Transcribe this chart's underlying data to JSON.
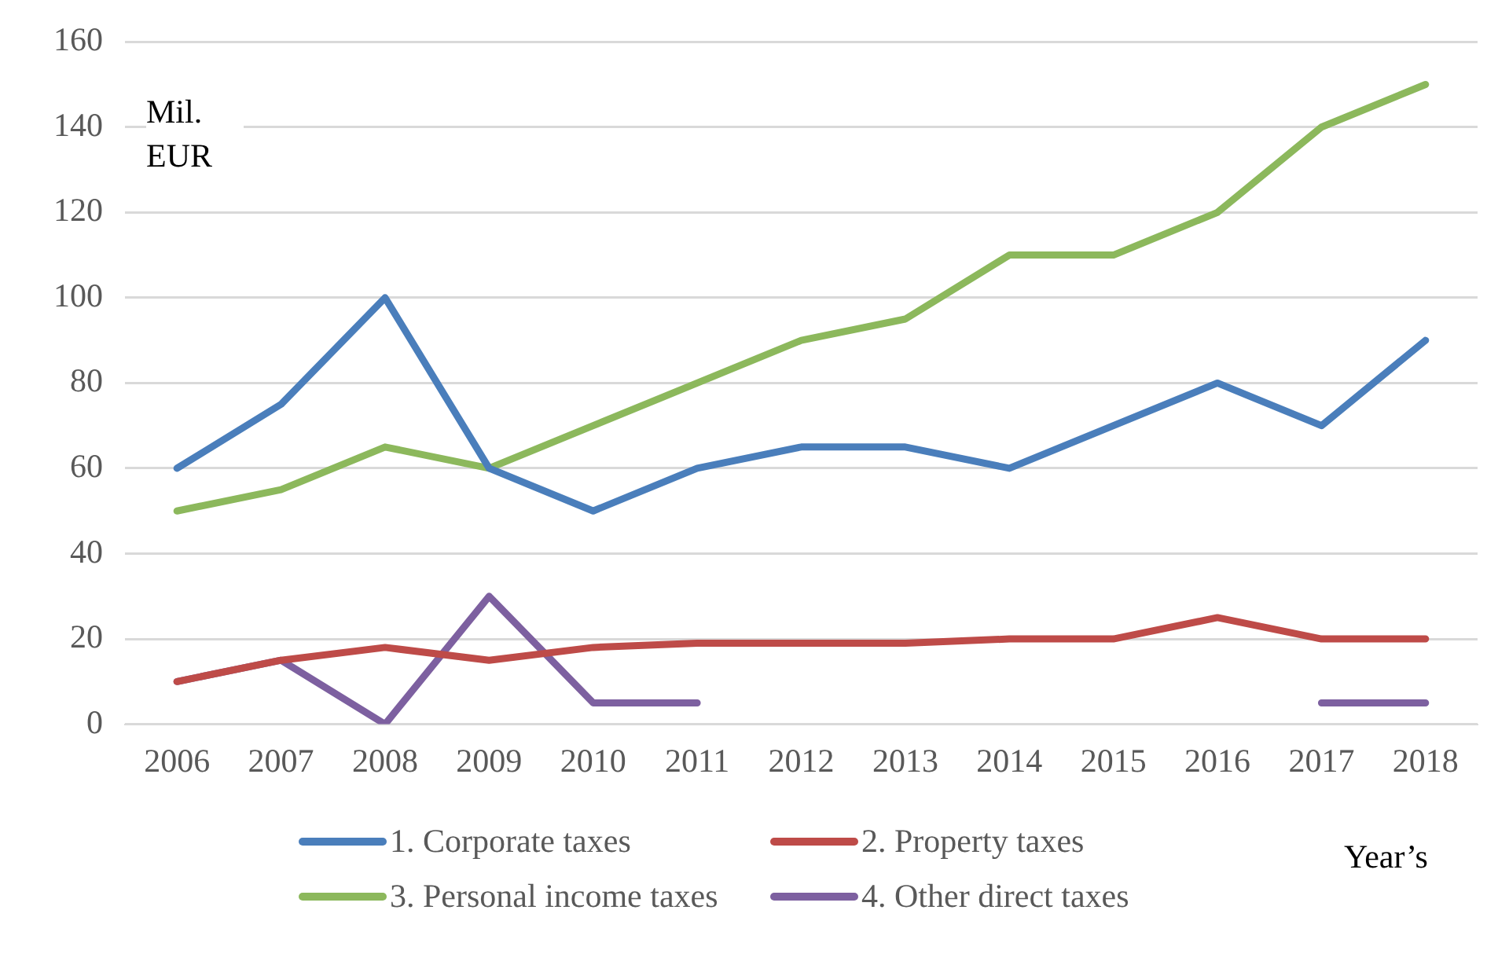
{
  "chart_data": {
    "type": "line",
    "xlabel": "Year’s",
    "ylabel": "Mil.\nEUR",
    "categories": [
      "2006",
      "2007",
      "2008",
      "2009",
      "2010",
      "2011",
      "2012",
      "2013",
      "2014",
      "2015",
      "2016",
      "2017",
      "2018"
    ],
    "series": [
      {
        "name": "1. Corporate taxes",
        "color": "#4a7ebb",
        "values": [
          60,
          75,
          100,
          60,
          50,
          60,
          65,
          65,
          60,
          70,
          80,
          70,
          90
        ]
      },
      {
        "name": "2. Property taxes",
        "color": "#be4b48",
        "values": [
          10,
          15,
          18,
          15,
          18,
          19,
          19,
          19,
          20,
          20,
          25,
          20,
          20
        ]
      },
      {
        "name": "3. Personal income taxes",
        "color": "#8cb85c",
        "values": [
          50,
          55,
          65,
          60,
          70,
          80,
          90,
          95,
          110,
          110,
          120,
          140,
          150
        ]
      },
      {
        "name": "4. Other direct taxes",
        "color": "#7d60a0",
        "values": [
          10,
          15,
          0,
          30,
          5,
          5,
          null,
          null,
          null,
          null,
          null,
          5,
          5
        ]
      }
    ],
    "ylim": [
      0,
      160
    ],
    "yticks": [
      0,
      20,
      40,
      60,
      80,
      100,
      120,
      140,
      160
    ],
    "grid": "y",
    "legend": "bottom",
    "marker": "none",
    "line_style": "solid"
  }
}
